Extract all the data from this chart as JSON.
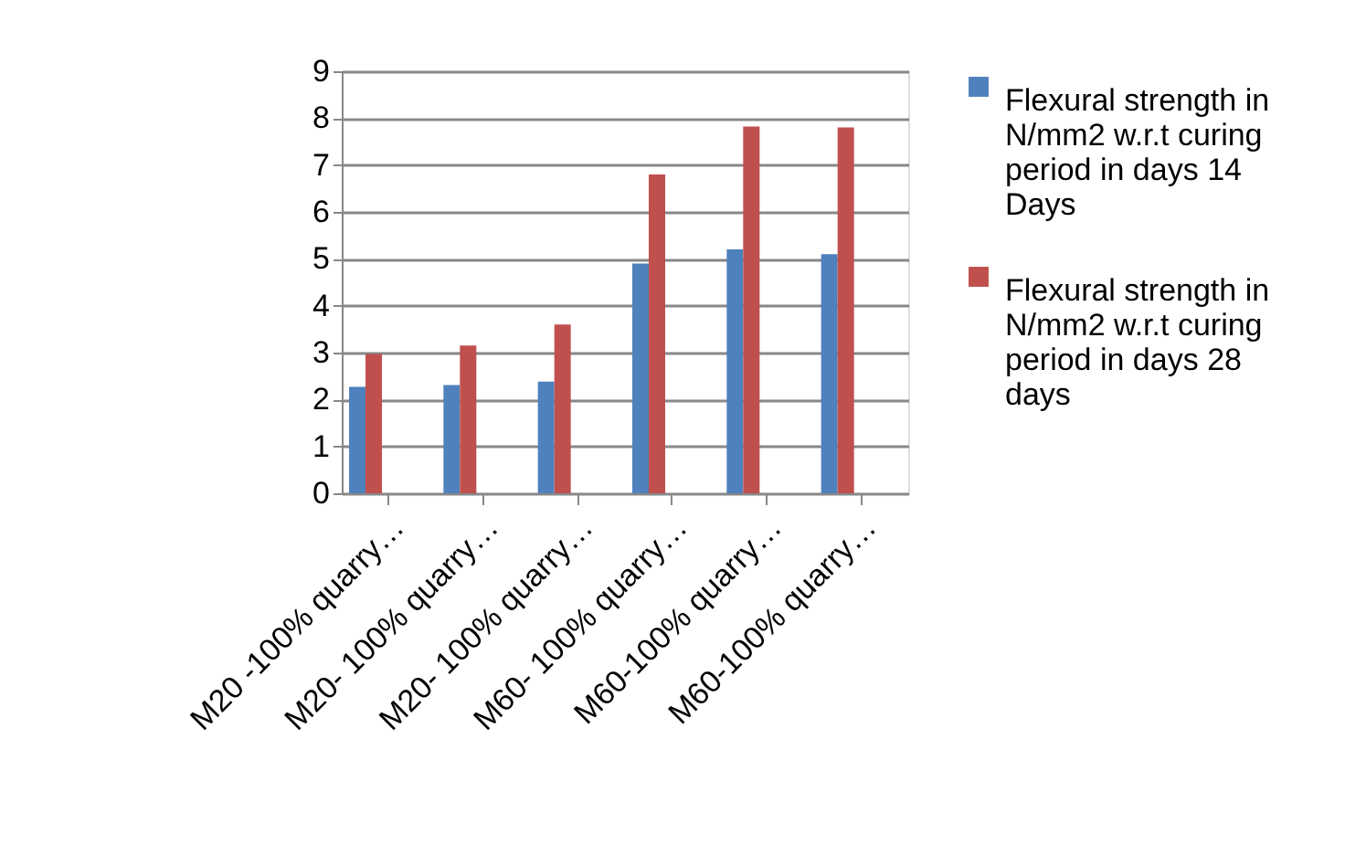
{
  "chart_data": {
    "type": "bar",
    "categories": [
      "M20 -100% quarry…",
      "M20- 100% quarry…",
      "M20- 100% quarry…",
      "M60- 100% quarry…",
      "M60-100% quarry…",
      "M60-100% quarry…"
    ],
    "series": [
      {
        "name": "Flexural strength in N/mm2 w.r.t curing period in days 14 Days",
        "color": "#4f81bd",
        "values": [
          2.27,
          2.31,
          2.38,
          4.9,
          5.2,
          5.1
        ]
      },
      {
        "name": "Flexural strength in N/mm2 w.r.t curing period in days 28 days",
        "color": "#c0504d",
        "values": [
          2.97,
          3.15,
          3.6,
          6.8,
          7.82,
          7.8
        ]
      }
    ],
    "ylim": [
      0,
      9
    ],
    "yticks": [
      0,
      1,
      2,
      3,
      4,
      5,
      6,
      7,
      8,
      9
    ],
    "grid": "y",
    "legend": "right"
  }
}
